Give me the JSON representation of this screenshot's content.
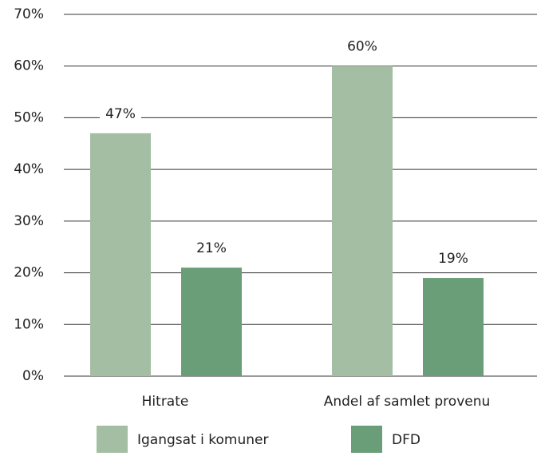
{
  "chart_data": {
    "type": "bar",
    "categories": [
      "Hitrate",
      "Andel af samlet provenu"
    ],
    "series": [
      {
        "name": "Igangsat i komuner",
        "color": "#a3bea3",
        "values": [
          47,
          60
        ],
        "value_labels": [
          "47%",
          "60%"
        ]
      },
      {
        "name": "DFD",
        "color": "#6a9e78",
        "values": [
          21,
          19
        ],
        "value_labels": [
          "21%",
          "19%"
        ]
      }
    ],
    "ylim": [
      0,
      70
    ],
    "yticks": [
      {
        "value": 0,
        "label": "0%"
      },
      {
        "value": 10,
        "label": "10%"
      },
      {
        "value": 20,
        "label": "20%"
      },
      {
        "value": 30,
        "label": "30%"
      },
      {
        "value": 40,
        "label": "40%"
      },
      {
        "value": 50,
        "label": "50%"
      },
      {
        "value": 60,
        "label": "60%"
      },
      {
        "value": 70,
        "label": "70%"
      }
    ],
    "grid": true
  }
}
